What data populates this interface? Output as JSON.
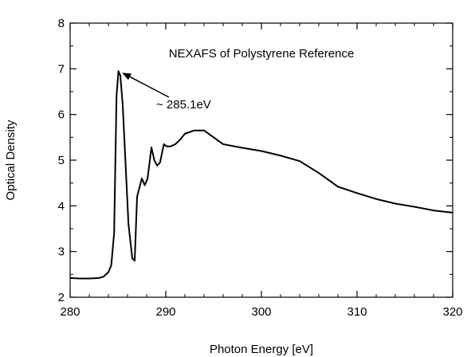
{
  "chart_data": {
    "type": "line",
    "title": "NEXAFS of Polystyrene Reference",
    "xlabel": "Photon Energy [eV]",
    "ylabel": "Optical Density",
    "xlim": [
      280,
      320
    ],
    "ylim": [
      2,
      8
    ],
    "xticks": [
      280,
      290,
      300,
      310,
      320
    ],
    "yticks": [
      2,
      3,
      4,
      5,
      6,
      7,
      8
    ],
    "grid": false,
    "annotations": [
      {
        "text": "~ 285.1eV",
        "points_to": {
          "x": 285.1,
          "y": 6.95
        }
      }
    ],
    "series": [
      {
        "x": [
          280,
          281,
          282,
          283,
          283.5,
          284,
          284.3,
          284.6,
          284.85,
          285.05,
          285.25,
          285.5,
          285.8,
          286.1,
          286.5,
          286.75,
          287,
          287.5,
          287.8,
          288.1,
          288.5,
          288.8,
          289.1,
          289.4,
          289.8,
          290.1,
          290.5,
          291,
          291.5,
          292,
          293,
          294,
          295,
          296,
          298,
          300,
          302,
          304,
          306,
          308,
          310,
          312,
          314,
          316,
          318,
          320
        ],
        "y": [
          2.42,
          2.41,
          2.41,
          2.42,
          2.45,
          2.55,
          2.7,
          3.4,
          6.4,
          6.95,
          6.85,
          6.2,
          4.9,
          3.6,
          2.85,
          2.8,
          4.2,
          4.6,
          4.45,
          4.6,
          5.28,
          5.0,
          4.88,
          4.95,
          5.35,
          5.3,
          5.3,
          5.35,
          5.45,
          5.58,
          5.65,
          5.65,
          5.5,
          5.35,
          5.27,
          5.2,
          5.1,
          4.98,
          4.72,
          4.42,
          4.28,
          4.15,
          4.05,
          3.98,
          3.9,
          3.85
        ]
      }
    ]
  }
}
